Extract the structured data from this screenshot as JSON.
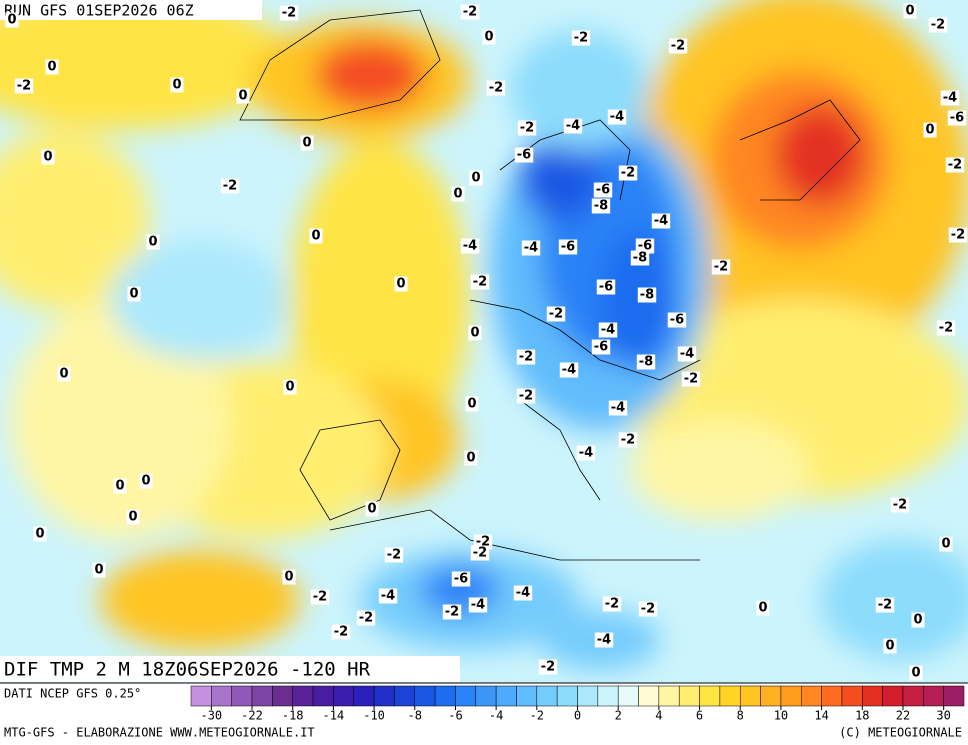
{
  "header": {
    "run": "RUN GFS 01SEP2026 06Z",
    "title": "DIF TMP 2 M 18Z06SEP2026 -120 HR"
  },
  "source": "DATI NCEP GFS 0.25°",
  "footer": {
    "left": "MTG-GFS - ELABORAZIONE WWW.METEOGIORNALE.IT",
    "right": "(C) METEOGIORNALE"
  },
  "colorbar": {
    "ticks": [
      -30,
      -22,
      -18,
      -14,
      -10,
      -8,
      -6,
      -4,
      -2,
      0,
      2,
      4,
      6,
      8,
      10,
      14,
      18,
      22,
      30
    ],
    "colors": [
      "#c490e0",
      "#a874cc",
      "#9058b8",
      "#7c44a4",
      "#6a2e90",
      "#5a2298",
      "#4a1ca4",
      "#3c1cb0",
      "#2c20bc",
      "#2030c8",
      "#1a44d8",
      "#1a58e4",
      "#1e6cf0",
      "#2a82f6",
      "#3c96f8",
      "#4eaafa",
      "#60bcfc",
      "#74ccfc",
      "#8cdcfc",
      "#ace8fc",
      "#ccf4fc",
      "#e6fcfc",
      "#fffcd4",
      "#fff6a4",
      "#ffee70",
      "#ffe444",
      "#ffd424",
      "#ffc420",
      "#ffb020",
      "#ff9c20",
      "#ff8620",
      "#ff6c20",
      "#f44e20",
      "#e43020",
      "#d41e2c",
      "#c41e42",
      "#b41e54",
      "#9c1e66"
    ]
  },
  "contour_labels": [
    0,
    -2,
    -2,
    0,
    -2,
    -2,
    0,
    -2,
    0,
    -2,
    0,
    0,
    -2,
    0,
    0,
    -2,
    -4,
    -4,
    -6,
    -2,
    0,
    0,
    -2,
    -6,
    -8,
    0,
    0,
    -4,
    -4,
    -6,
    -6,
    -4,
    -8,
    -2,
    0,
    -2,
    -6,
    -8,
    0,
    0,
    -2,
    -4,
    -6,
    -6,
    -2,
    -8,
    -4,
    -4,
    -2,
    0,
    0,
    0,
    -2,
    -4,
    -2,
    -4,
    0,
    0,
    0,
    0,
    0,
    0,
    -2,
    0,
    -2,
    -2,
    -2,
    0,
    0,
    -6,
    -2,
    -4,
    -4,
    -4,
    -2,
    -2,
    -2,
    0,
    -2,
    -2,
    -2,
    -4,
    0,
    0,
    -2,
    0,
    -4,
    -6,
    0,
    -2,
    -2,
    -2
  ]
}
